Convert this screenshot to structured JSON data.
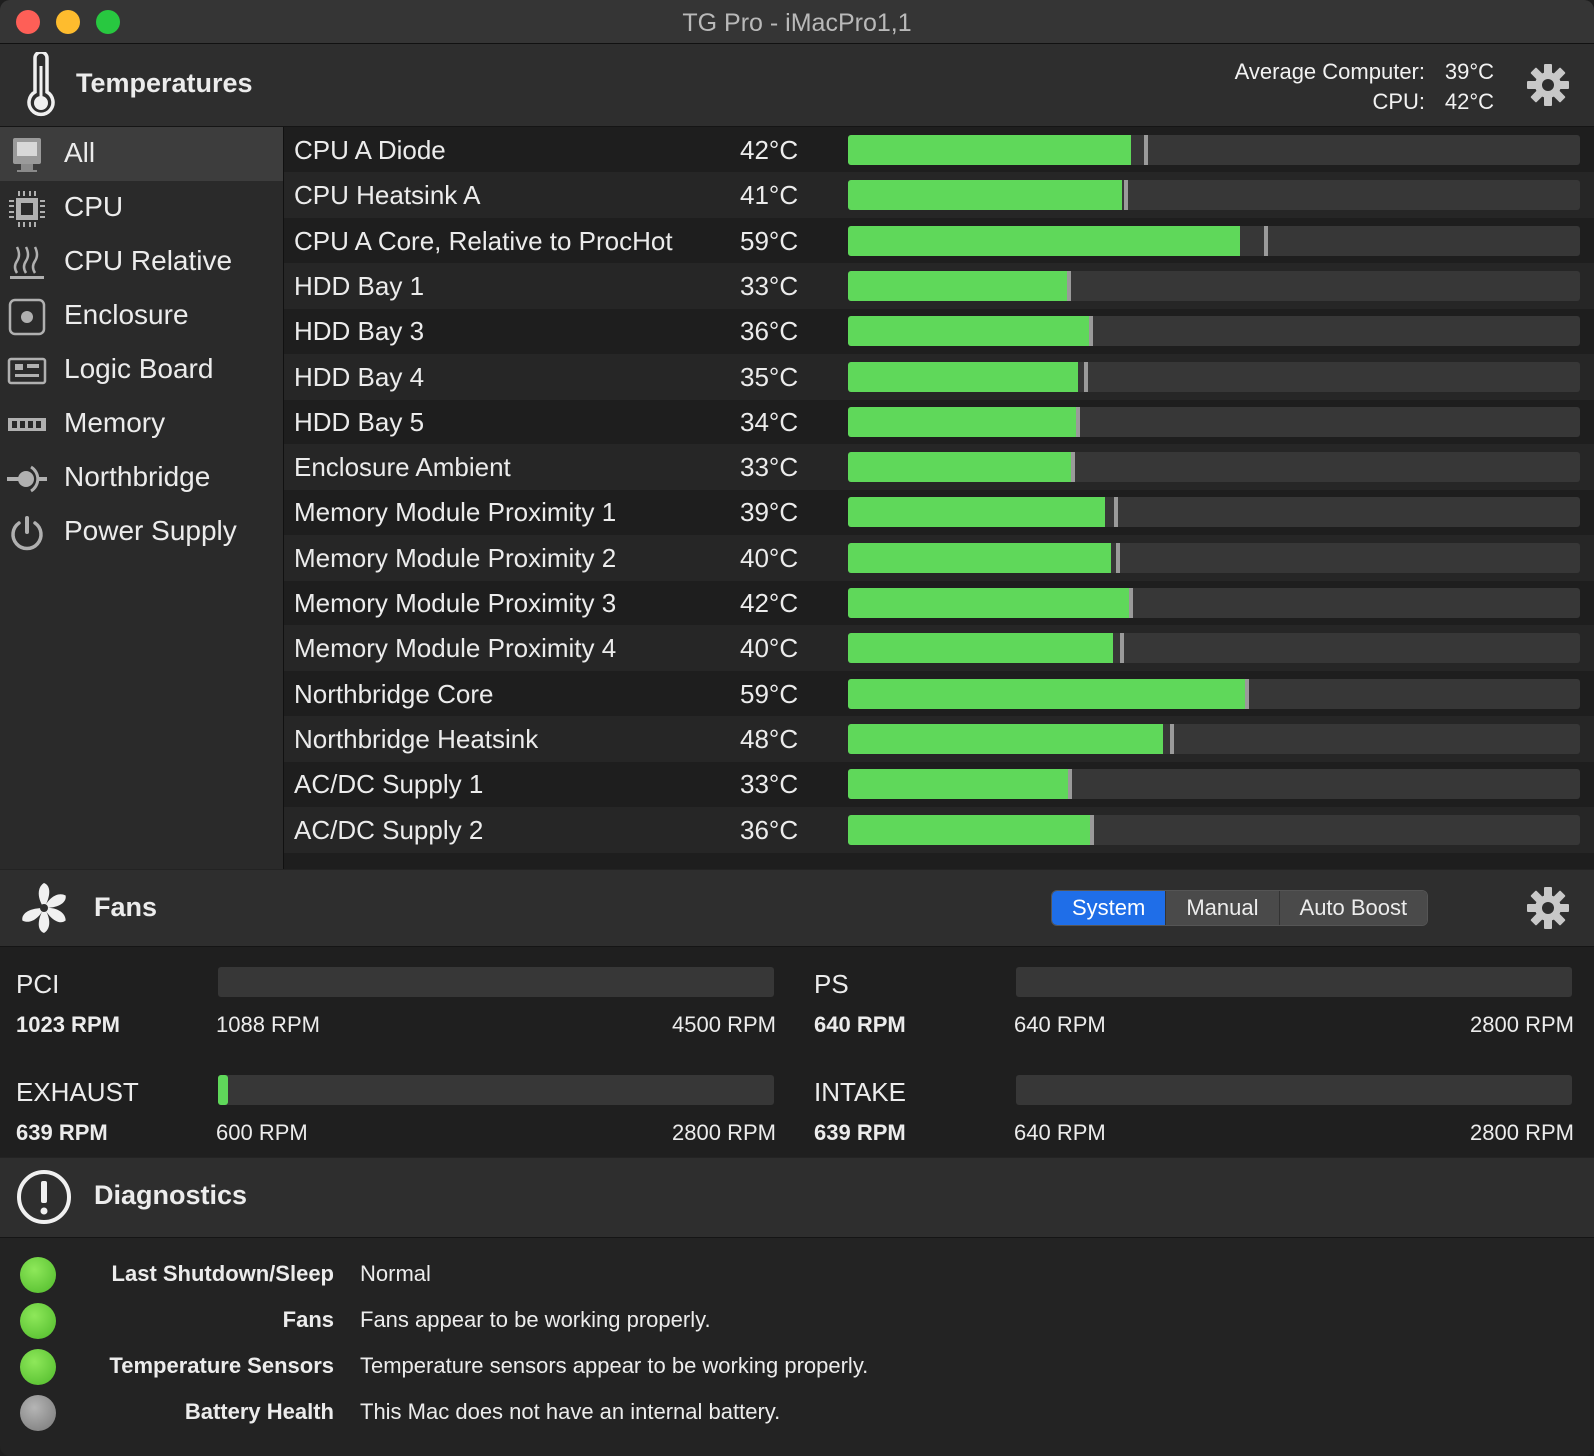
{
  "window": {
    "title": "TG Pro - iMacPro1,1"
  },
  "temperatures": {
    "header": "Temperatures",
    "average_label": "Average Computer:",
    "average_value": "39°C",
    "cpu_label": "CPU:",
    "cpu_value": "42°C",
    "categories": [
      {
        "label": "All",
        "icon": "imac-icon",
        "selected": true
      },
      {
        "label": "CPU",
        "icon": "cpu-chip-icon"
      },
      {
        "label": "CPU Relative",
        "icon": "heat-waves-icon"
      },
      {
        "label": "Enclosure",
        "icon": "enclosure-icon"
      },
      {
        "label": "Logic Board",
        "icon": "logic-board-icon"
      },
      {
        "label": "Memory",
        "icon": "memory-icon"
      },
      {
        "label": "Northbridge",
        "icon": "northbridge-icon"
      },
      {
        "label": "Power Supply",
        "icon": "power-icon"
      }
    ],
    "sensors": [
      {
        "name": "CPU A Diode",
        "value": "42°C",
        "level": 0.386,
        "marker": 0.405
      },
      {
        "name": "CPU Heatsink A",
        "value": "41°C",
        "level": 0.374,
        "marker": 0.377
      },
      {
        "name": "CPU A Core, Relative to ProcHot",
        "value": "59°C",
        "level": 0.536,
        "marker": 0.568
      },
      {
        "name": "HDD Bay 1",
        "value": "33°C",
        "level": 0.299,
        "marker": 0.299
      },
      {
        "name": "HDD Bay 3",
        "value": "36°C",
        "level": 0.329,
        "marker": 0.329
      },
      {
        "name": "HDD Bay 4",
        "value": "35°C",
        "level": 0.314,
        "marker": 0.322
      },
      {
        "name": "HDD Bay 5",
        "value": "34°C",
        "level": 0.311,
        "marker": 0.311
      },
      {
        "name": "Enclosure Ambient",
        "value": "33°C",
        "level": 0.304,
        "marker": 0.304
      },
      {
        "name": "Memory Module Proximity 1",
        "value": "39°C",
        "level": 0.351,
        "marker": 0.363
      },
      {
        "name": "Memory Module Proximity 2",
        "value": "40°C",
        "level": 0.359,
        "marker": 0.366
      },
      {
        "name": "Memory Module Proximity 3",
        "value": "42°C",
        "level": 0.384,
        "marker": 0.384
      },
      {
        "name": "Memory Module Proximity 4",
        "value": "40°C",
        "level": 0.362,
        "marker": 0.372
      },
      {
        "name": "Northbridge Core",
        "value": "59°C",
        "level": 0.542,
        "marker": 0.542
      },
      {
        "name": "Northbridge Heatsink",
        "value": "48°C",
        "level": 0.43,
        "marker": 0.44
      },
      {
        "name": "AC/DC Supply 1",
        "value": "33°C",
        "level": 0.3,
        "marker": 0.3
      },
      {
        "name": "AC/DC Supply 2",
        "value": "36°C",
        "level": 0.331,
        "marker": 0.331
      }
    ]
  },
  "fans": {
    "header": "Fans",
    "modes": [
      {
        "label": "System",
        "active": true
      },
      {
        "label": "Manual"
      },
      {
        "label": "Auto Boost"
      }
    ],
    "list": [
      {
        "name": "PCI",
        "current": "1023 RPM",
        "min": "1088 RPM",
        "max": "4500 RPM",
        "level": 0
      },
      {
        "name": "PS",
        "current": "640 RPM",
        "min": "640 RPM",
        "max": "2800 RPM",
        "level": 0
      },
      {
        "name": "EXHAUST",
        "current": "639 RPM",
        "min": "600 RPM",
        "max": "2800 RPM",
        "level": 0.018
      },
      {
        "name": "INTAKE",
        "current": "639 RPM",
        "min": "640 RPM",
        "max": "2800 RPM",
        "level": 0
      }
    ]
  },
  "diagnostics": {
    "header": "Diagnostics",
    "items": [
      {
        "label": "Last Shutdown/Sleep",
        "text": "Normal",
        "status": "green"
      },
      {
        "label": "Fans",
        "text": "Fans appear to be working properly.",
        "status": "green"
      },
      {
        "label": "Temperature Sensors",
        "text": "Temperature sensors appear to be working properly.",
        "status": "green"
      },
      {
        "label": "Battery Health",
        "text": "This Mac does not have an internal battery.",
        "status": "gray"
      }
    ]
  },
  "colors": {
    "bar_green": "#5fd85a",
    "accent_blue": "#1f6ee8"
  }
}
